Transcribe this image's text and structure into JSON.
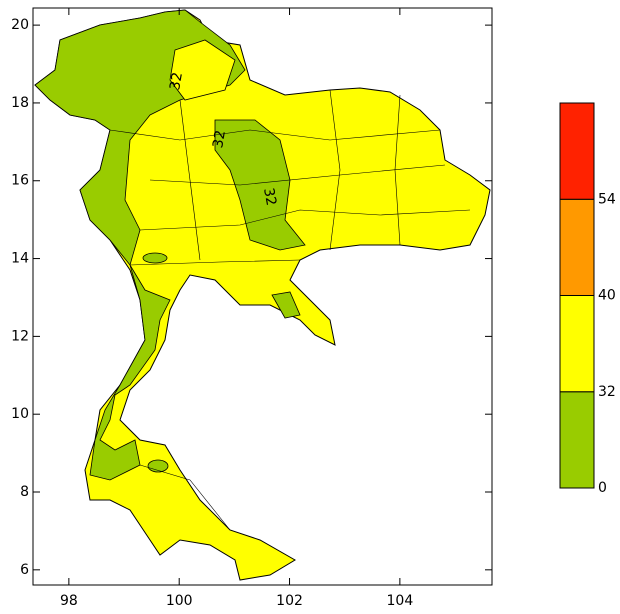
{
  "chart_data": {
    "type": "map",
    "xlim": [
      97.35,
      105.67
    ],
    "ylim": [
      5.61,
      20.44
    ],
    "xticks": [
      98,
      100,
      102,
      104
    ],
    "yticks": [
      6,
      8,
      10,
      12,
      14,
      16,
      18,
      20
    ],
    "contour_labels": [
      "32",
      "32",
      "32"
    ],
    "colorbar": {
      "ticks": [
        0,
        32,
        40,
        54
      ],
      "colors": [
        "#99cc00",
        "#ffff00",
        "#ff9900",
        "#ff2200"
      ]
    }
  }
}
